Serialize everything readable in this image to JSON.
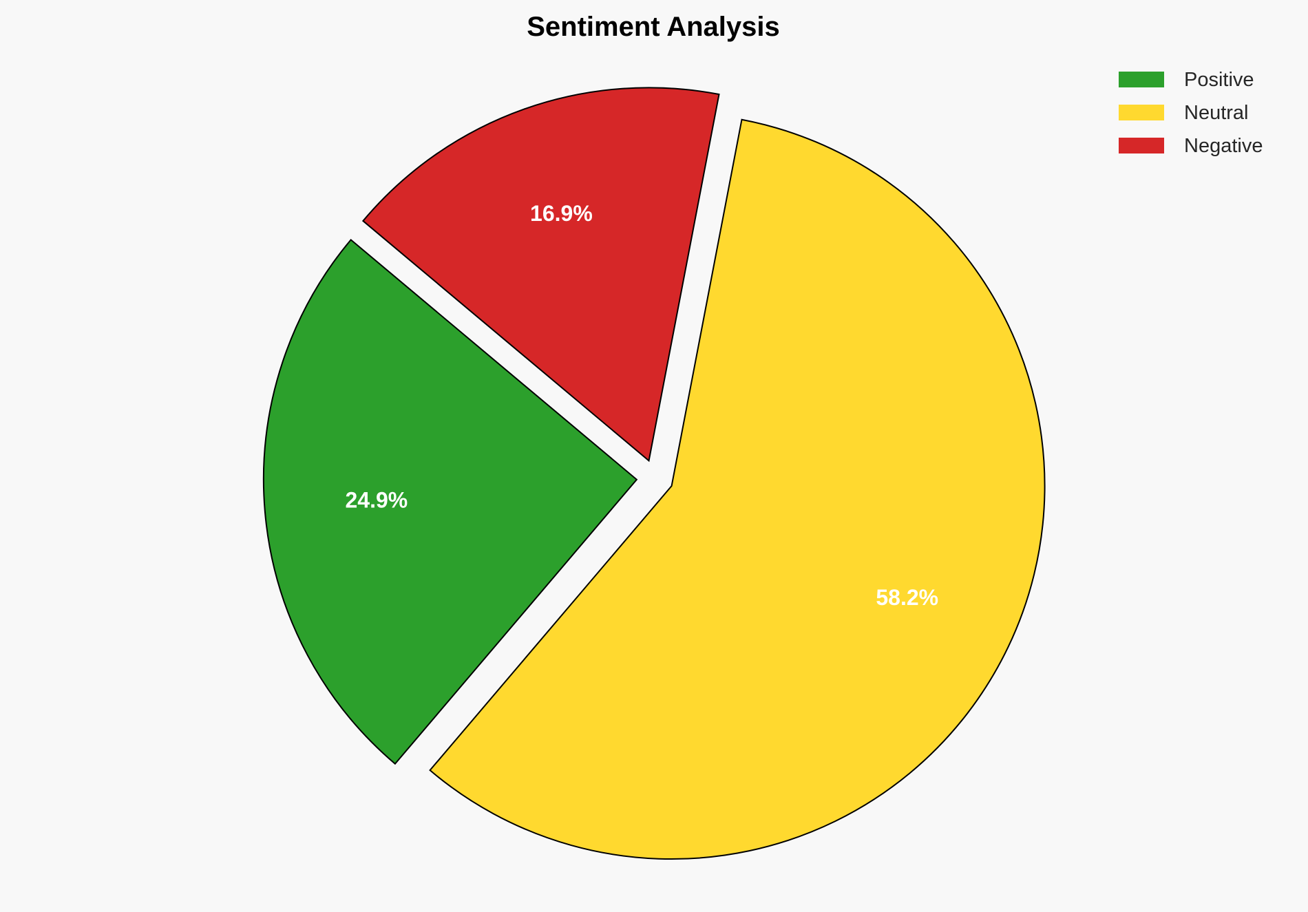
{
  "chart_data": {
    "type": "pie",
    "title": "Sentiment Analysis",
    "categories": [
      "Positive",
      "Neutral",
      "Negative"
    ],
    "values": [
      24.9,
      58.2,
      16.9
    ],
    "labels": [
      "24.9%",
      "58.2%",
      "16.9%"
    ],
    "colors": [
      "#2ca02c",
      "#ffd92f",
      "#d62728"
    ],
    "start_angle_deg": 140,
    "direction": "counterclockwise",
    "exploded": true,
    "edge_color": "#000000",
    "label_color": "#ffffff",
    "legend_placement": "top-right",
    "background": "#f8f8f8"
  }
}
